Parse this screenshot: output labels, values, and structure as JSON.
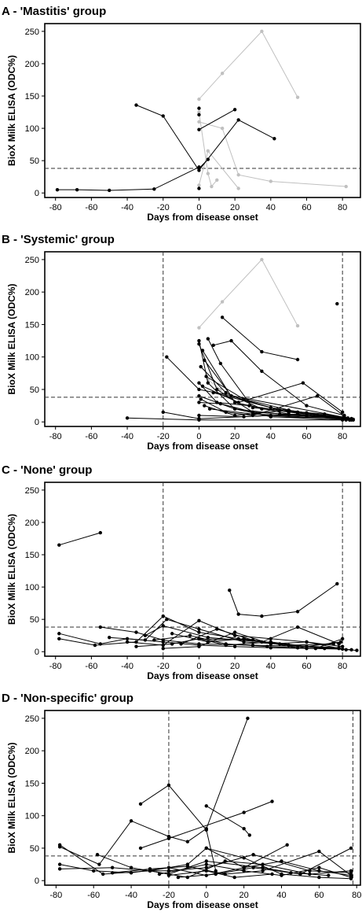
{
  "figure": {
    "y_axis_label": "BioX Milk ELISA (ODC%)",
    "x_axis_label": "Days from disease onset"
  },
  "chart_data": [
    {
      "type": "line",
      "title": "A - 'Mastitis' group",
      "xlabel": "Days from disease onset",
      "ylabel": "BioX Milk ELISA (ODC%)",
      "xlim": [
        -86,
        90
      ],
      "ylim": [
        -7,
        262
      ],
      "xticks": [
        -80,
        -60,
        -40,
        -20,
        0,
        20,
        40,
        60,
        80
      ],
      "yticks": [
        0,
        50,
        100,
        150,
        200,
        250
      ],
      "hlines": [
        38
      ],
      "vlines": [],
      "grid": false,
      "legend": "none",
      "series": [
        {
          "color": "#c0c0c0",
          "x": [
            0,
            13,
            35,
            55
          ],
          "y": [
            145,
            185,
            250,
            148
          ]
        },
        {
          "color": "#c0c0c0",
          "x": [
            0,
            13,
            22,
            40,
            82
          ],
          "y": [
            110,
            100,
            28,
            18,
            10
          ]
        },
        {
          "color": "#c0c0c0",
          "x": [
            0,
            5,
            22
          ],
          "y": [
            12,
            65,
            7
          ]
        },
        {
          "color": "#c0c0c0",
          "x": [
            0,
            5,
            7,
            10
          ],
          "y": [
            125,
            30,
            10,
            20
          ]
        },
        {
          "color": "#000000",
          "x": [
            -35,
            -20,
            0,
            22,
            42
          ],
          "y": [
            136,
            119,
            35,
            113,
            84
          ]
        },
        {
          "color": "#000000",
          "x": [
            -79,
            -68,
            -50,
            -25,
            0
          ],
          "y": [
            5,
            5,
            4,
            6,
            40
          ]
        },
        {
          "color": "#000000",
          "x": [
            0,
            20
          ],
          "y": [
            98,
            129
          ]
        },
        {
          "color": "#000000",
          "x": [
            0,
            5
          ],
          "y": [
            38,
            52
          ]
        },
        {
          "color": "#000000",
          "x": [
            0
          ],
          "y": [
            131
          ]
        },
        {
          "color": "#000000",
          "x": [
            0
          ],
          "y": [
            121
          ]
        },
        {
          "color": "#000000",
          "x": [
            0
          ],
          "y": [
            7
          ]
        }
      ]
    },
    {
      "type": "line",
      "title": "B - 'Systemic' group",
      "xlabel": "Days from disease onset",
      "ylabel": "BioX Milk ELISA (ODC%)",
      "xlim": [
        -86,
        90
      ],
      "ylim": [
        -7,
        262
      ],
      "xticks": [
        -80,
        -60,
        -40,
        -20,
        0,
        20,
        40,
        60,
        80
      ],
      "yticks": [
        0,
        50,
        100,
        150,
        200,
        250
      ],
      "hlines": [
        38
      ],
      "vlines": [
        -20,
        80
      ],
      "grid": false,
      "legend": "none",
      "series": [
        {
          "color": "#c0c0c0",
          "x": [
            0,
            13,
            35,
            55
          ],
          "y": [
            145,
            185,
            250,
            148
          ]
        },
        {
          "color": "#c0c0c0",
          "x": [
            5,
            12
          ],
          "y": [
            65,
            50
          ]
        },
        {
          "color": "#000000",
          "x": [
            -40,
            0,
            85
          ],
          "y": [
            6,
            3,
            3
          ]
        },
        {
          "color": "#000000",
          "x": [
            -18,
            0,
            85
          ],
          "y": [
            100,
            50,
            5
          ]
        },
        {
          "color": "#000000",
          "x": [
            -20,
            0,
            40,
            80
          ],
          "y": [
            15,
            5,
            10,
            5
          ]
        },
        {
          "color": "#000000",
          "x": [
            0,
            5,
            20,
            40,
            80
          ],
          "y": [
            125,
            60,
            20,
            8,
            3
          ]
        },
        {
          "color": "#000000",
          "x": [
            0,
            10,
            30,
            60,
            82
          ],
          "y": [
            120,
            50,
            15,
            10,
            5
          ]
        },
        {
          "color": "#000000",
          "x": [
            2,
            20,
            50,
            85
          ],
          "y": [
            110,
            30,
            12,
            4
          ]
        },
        {
          "color": "#000000",
          "x": [
            5,
            12,
            30,
            60,
            83
          ],
          "y": [
            128,
            90,
            22,
            14,
            6
          ]
        },
        {
          "color": "#000000",
          "x": [
            3,
            18,
            45,
            84
          ],
          "y": [
            95,
            40,
            18,
            3
          ]
        },
        {
          "color": "#000000",
          "x": [
            1,
            15,
            35,
            70,
            86
          ],
          "y": [
            85,
            45,
            20,
            12,
            4
          ]
        },
        {
          "color": "#000000",
          "x": [
            4,
            25,
            55,
            82
          ],
          "y": [
            70,
            35,
            15,
            5
          ]
        },
        {
          "color": "#000000",
          "x": [
            13,
            35,
            55
          ],
          "y": [
            161,
            108,
            96
          ]
        },
        {
          "color": "#000000",
          "x": [
            8,
            18,
            35,
            60,
            81
          ],
          "y": [
            118,
            125,
            78,
            25,
            10
          ]
        },
        {
          "color": "#000000",
          "x": [
            0,
            10,
            28,
            50,
            80
          ],
          "y": [
            60,
            30,
            25,
            15,
            6
          ]
        },
        {
          "color": "#000000",
          "x": [
            2,
            22,
            58,
            80
          ],
          "y": [
            55,
            30,
            60,
            15
          ]
        },
        {
          "color": "#000000",
          "x": [
            0,
            20,
            45,
            85
          ],
          "y": [
            40,
            20,
            12,
            5
          ]
        },
        {
          "color": "#000000",
          "x": [
            1,
            15,
            30,
            66,
            84
          ],
          "y": [
            35,
            15,
            10,
            40,
            3
          ]
        },
        {
          "color": "#000000",
          "x": [
            0,
            12,
            40,
            78
          ],
          "y": [
            30,
            28,
            8,
            6
          ]
        },
        {
          "color": "#000000",
          "x": [
            3,
            20,
            50,
            85
          ],
          "y": [
            25,
            10,
            18,
            4
          ]
        },
        {
          "color": "#000000",
          "x": [
            6,
            30,
            60,
            82
          ],
          "y": [
            20,
            12,
            9,
            3
          ]
        },
        {
          "color": "#000000",
          "x": [
            0,
            25,
            55,
            80
          ],
          "y": [
            10,
            8,
            12,
            5
          ]
        },
        {
          "color": "#000000",
          "x": [
            8,
            40,
            70,
            86
          ],
          "y": [
            45,
            22,
            10,
            3
          ]
        },
        {
          "color": "#000000",
          "x": [
            77
          ],
          "y": [
            182
          ]
        }
      ]
    },
    {
      "type": "line",
      "title": "C - 'None' group",
      "xlabel": "Days from disease onset",
      "ylabel": "BioX Milk ELISA (ODC%)",
      "xlim": [
        -86,
        90
      ],
      "ylim": [
        -7,
        262
      ],
      "xticks": [
        -80,
        -60,
        -40,
        -20,
        0,
        20,
        40,
        60,
        80
      ],
      "yticks": [
        0,
        50,
        100,
        150,
        200,
        250
      ],
      "hlines": [
        38
      ],
      "vlines": [
        -20,
        80
      ],
      "grid": false,
      "legend": "none",
      "series": [
        {
          "color": "#000000",
          "x": [
            -78,
            -55
          ],
          "y": [
            165,
            184
          ]
        },
        {
          "color": "#000000",
          "x": [
            17,
            22,
            35,
            55,
            77
          ],
          "y": [
            95,
            58,
            55,
            62,
            105
          ]
        },
        {
          "color": "#000000",
          "x": [
            -78,
            -55,
            -40,
            -20,
            0,
            20,
            40,
            60,
            80
          ],
          "y": [
            28,
            12,
            20,
            15,
            10,
            8,
            6,
            5,
            4
          ]
        },
        {
          "color": "#000000",
          "x": [
            -78,
            -58,
            -35,
            -20,
            0,
            22,
            50,
            78
          ],
          "y": [
            20,
            10,
            15,
            55,
            30,
            20,
            10,
            5
          ]
        },
        {
          "color": "#000000",
          "x": [
            -55,
            -35,
            -20,
            0,
            30,
            60,
            85
          ],
          "y": [
            38,
            30,
            18,
            12,
            10,
            8,
            3
          ]
        },
        {
          "color": "#000000",
          "x": [
            -50,
            -30,
            -18,
            0,
            25,
            45,
            70
          ],
          "y": [
            22,
            18,
            50,
            35,
            15,
            12,
            5
          ]
        },
        {
          "color": "#000000",
          "x": [
            -40,
            -20,
            0,
            20,
            40,
            60,
            80
          ],
          "y": [
            15,
            10,
            48,
            25,
            20,
            15,
            8
          ]
        },
        {
          "color": "#000000",
          "x": [
            -35,
            -15,
            0,
            30,
            50,
            78
          ],
          "y": [
            8,
            12,
            20,
            18,
            10,
            6
          ]
        },
        {
          "color": "#000000",
          "x": [
            -30,
            -20,
            5,
            35,
            55,
            78
          ],
          "y": [
            25,
            40,
            22,
            15,
            38,
            12
          ]
        },
        {
          "color": "#000000",
          "x": [
            -20,
            0,
            20,
            40,
            60,
            82
          ],
          "y": [
            5,
            8,
            30,
            12,
            15,
            3
          ]
        },
        {
          "color": "#000000",
          "x": [
            -25,
            -5,
            15,
            38,
            65,
            80
          ],
          "y": [
            18,
            25,
            12,
            8,
            5,
            20
          ]
        },
        {
          "color": "#000000",
          "x": [
            -15,
            5,
            25,
            50,
            75
          ],
          "y": [
            28,
            15,
            20,
            10,
            12
          ]
        },
        {
          "color": "#000000",
          "x": [
            -10,
            10,
            30,
            55,
            79
          ],
          "y": [
            12,
            35,
            18,
            6,
            15
          ]
        },
        {
          "color": "#000000",
          "x": [
            0,
            15,
            40,
            60,
            88
          ],
          "y": [
            20,
            10,
            15,
            8,
            2
          ]
        }
      ]
    },
    {
      "type": "line",
      "title": "D - 'Non-specific' group",
      "xlabel": "Days from disease onset",
      "ylabel": "BioX Milk ELISA (ODC%)",
      "xlim": [
        -86,
        82
      ],
      "ylim": [
        -7,
        262
      ],
      "xticks": [
        -80,
        -60,
        -40,
        -20,
        0,
        20,
        40,
        60,
        80
      ],
      "yticks": [
        0,
        50,
        100,
        150,
        200,
        250
      ],
      "hlines": [
        38
      ],
      "vlines": [
        -20,
        78
      ],
      "grid": false,
      "legend": "none",
      "series": [
        {
          "color": "#000000",
          "x": [
            -78,
            -57,
            -40,
            -20,
            -10,
            0,
            22
          ],
          "y": [
            52,
            25,
            92,
            68,
            60,
            80,
            250
          ]
        },
        {
          "color": "#000000",
          "x": [
            -35,
            -20,
            0,
            5
          ],
          "y": [
            118,
            147,
            78,
            15
          ]
        },
        {
          "color": "#000000",
          "x": [
            -35,
            -20,
            20,
            35
          ],
          "y": [
            50,
            65,
            105,
            122
          ]
        },
        {
          "color": "#000000",
          "x": [
            0,
            20,
            23
          ],
          "y": [
            115,
            80,
            70
          ]
        },
        {
          "color": "#000000",
          "x": [
            -78,
            -55,
            -30,
            -20,
            0,
            25,
            55,
            77
          ],
          "y": [
            55,
            10,
            15,
            15,
            20,
            40,
            15,
            12
          ]
        },
        {
          "color": "#000000",
          "x": [
            -78,
            -60,
            -40,
            -20,
            0,
            20,
            40,
            60,
            77
          ],
          "y": [
            25,
            15,
            12,
            20,
            8,
            20,
            30,
            15,
            8
          ]
        },
        {
          "color": "#000000",
          "x": [
            -78,
            -50,
            -30,
            -10,
            0,
            20,
            40,
            60,
            77
          ],
          "y": [
            18,
            20,
            15,
            25,
            50,
            35,
            10,
            5,
            3
          ]
        },
        {
          "color": "#000000",
          "x": [
            -58,
            -40,
            -20,
            0,
            30,
            50,
            77
          ],
          "y": [
            40,
            20,
            10,
            30,
            20,
            10,
            50
          ]
        },
        {
          "color": "#000000",
          "x": [
            -50,
            -30,
            -10,
            10,
            30,
            60,
            77
          ],
          "y": [
            12,
            18,
            22,
            10,
            15,
            45,
            8
          ]
        },
        {
          "color": "#000000",
          "x": [
            -25,
            0,
            20,
            40,
            60,
            77
          ],
          "y": [
            10,
            25,
            15,
            8,
            20,
            5
          ]
        },
        {
          "color": "#000000",
          "x": [
            -15,
            5,
            25,
            45,
            65
          ],
          "y": [
            5,
            10,
            20,
            12,
            8
          ]
        },
        {
          "color": "#000000",
          "x": [
            -30,
            -10,
            10,
            30,
            55,
            77
          ],
          "y": [
            15,
            5,
            30,
            25,
            10,
            15
          ]
        },
        {
          "color": "#000000",
          "x": [
            0,
            20,
            43
          ],
          "y": [
            50,
            20,
            55
          ]
        },
        {
          "color": "#000000",
          "x": [
            -20,
            0,
            15,
            35
          ],
          "y": [
            8,
            15,
            5,
            10
          ]
        }
      ]
    }
  ]
}
